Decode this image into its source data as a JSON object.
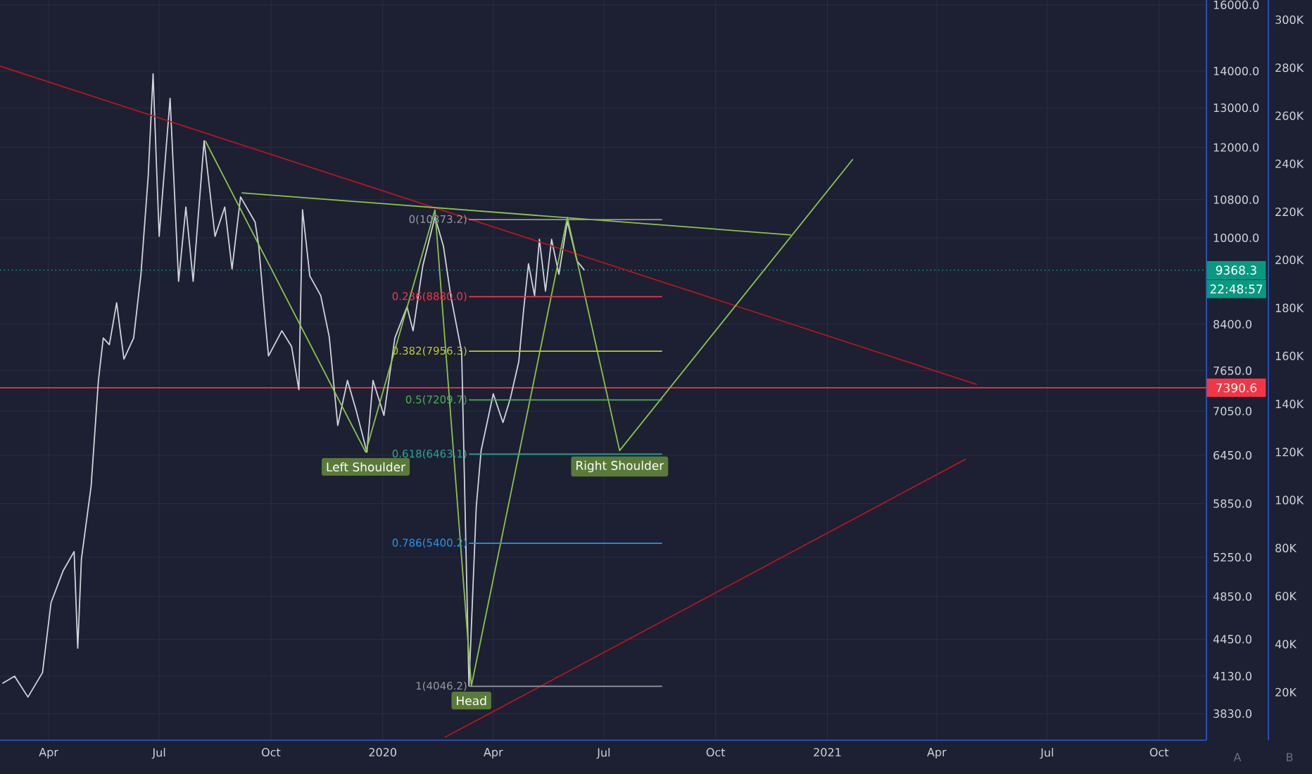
{
  "chart_data": {
    "type": "line",
    "log": "y",
    "grid": true,
    "marker": "none",
    "line_style": "solid",
    "xlim": [
      "2019-02-20",
      "2021-11-09"
    ],
    "ylim": [
      3630,
      16160
    ],
    "y2lim": [
      0,
      308200
    ],
    "xticks": [
      {
        "value": "2019-04-01",
        "label": "Apr"
      },
      {
        "value": "2019-07-01",
        "label": "Jul"
      },
      {
        "value": "2019-10-01",
        "label": "Oct"
      },
      {
        "value": "2020-01-01",
        "label": "2020"
      },
      {
        "value": "2020-04-01",
        "label": "Apr"
      },
      {
        "value": "2020-07-01",
        "label": "Jul"
      },
      {
        "value": "2020-10-01",
        "label": "Oct"
      },
      {
        "value": "2021-01-01",
        "label": "2021"
      },
      {
        "value": "2021-04-01",
        "label": "Apr"
      },
      {
        "value": "2021-07-01",
        "label": "Jul"
      },
      {
        "value": "2021-10-01",
        "label": "Oct"
      }
    ],
    "yticks": [
      {
        "value": 3830,
        "label": "3830.0"
      },
      {
        "value": 4130,
        "label": "4130.0"
      },
      {
        "value": 4450,
        "label": "4450.0"
      },
      {
        "value": 4850,
        "label": "4850.0"
      },
      {
        "value": 5250,
        "label": "5250.0"
      },
      {
        "value": 5850,
        "label": "5850.0"
      },
      {
        "value": 6450,
        "label": "6450.0"
      },
      {
        "value": 7050,
        "label": "7050.0"
      },
      {
        "value": 7650,
        "label": "7650.0"
      },
      {
        "value": 8400,
        "label": "8400.0"
      },
      {
        "value": 10000,
        "label": "10000.0"
      },
      {
        "value": 10800,
        "label": "10800.0"
      },
      {
        "value": 12000,
        "label": "12000.0"
      },
      {
        "value": 13000,
        "label": "13000.0"
      },
      {
        "value": 14000,
        "label": "14000.0"
      },
      {
        "value": 16000,
        "label": "16000.0"
      }
    ],
    "y2ticks": [
      {
        "value": 20000,
        "label": "20K"
      },
      {
        "value": 40000,
        "label": "40K"
      },
      {
        "value": 60000,
        "label": "60K"
      },
      {
        "value": 80000,
        "label": "80K"
      },
      {
        "value": 100000,
        "label": "100K"
      },
      {
        "value": 120000,
        "label": "120K"
      },
      {
        "value": 140000,
        "label": "140K"
      },
      {
        "value": 160000,
        "label": "160K"
      },
      {
        "value": 180000,
        "label": "180K"
      },
      {
        "value": 200000,
        "label": "200K"
      },
      {
        "value": 220000,
        "label": "220K"
      },
      {
        "value": 240000,
        "label": "240K"
      },
      {
        "value": 260000,
        "label": "260K"
      },
      {
        "value": 280000,
        "label": "280K"
      },
      {
        "value": 300000,
        "label": "300K"
      }
    ],
    "series": [
      {
        "color": "#d1d4dc",
        "x": [
          "2019-02-22",
          "2019-03-04",
          "2019-03-15",
          "2019-03-27",
          "2019-04-03",
          "2019-04-13",
          "2019-04-22",
          "2019-04-25",
          "2019-04-28",
          "2019-05-06",
          "2019-05-12",
          "2019-05-16",
          "2019-05-21",
          "2019-05-27",
          "2019-06-02",
          "2019-06-10",
          "2019-06-16",
          "2019-06-22",
          "2019-06-26",
          "2019-07-01",
          "2019-07-10",
          "2019-07-17",
          "2019-07-23",
          "2019-07-29",
          "2019-08-07",
          "2019-08-16",
          "2019-08-24",
          "2019-08-30",
          "2019-09-06",
          "2019-09-18",
          "2019-09-21",
          "2019-09-26",
          "2019-09-29",
          "2019-10-10",
          "2019-10-18",
          "2019-10-24",
          "2019-10-27",
          "2019-11-02",
          "2019-11-11",
          "2019-11-18",
          "2019-11-25",
          "2019-12-03",
          "2019-12-10",
          "2019-12-19",
          "2019-12-24",
          "2020-01-02",
          "2020-01-11",
          "2020-01-21",
          "2020-01-26",
          "2020-02-03",
          "2020-02-13",
          "2020-02-20",
          "2020-02-26",
          "2020-03-06",
          "2020-03-12",
          "2020-03-18",
          "2020-03-22",
          "2020-04-01",
          "2020-04-09",
          "2020-04-15",
          "2020-04-22",
          "2020-04-26",
          "2020-04-30",
          "2020-05-05",
          "2020-05-09",
          "2020-05-14",
          "2020-05-19",
          "2020-05-25",
          "2020-06-01",
          "2020-06-06",
          "2020-06-09",
          "2020-06-15"
        ],
        "values": [
          4070,
          4130,
          3960,
          4160,
          4790,
          5110,
          5310,
          4370,
          5230,
          6060,
          7500,
          8170,
          8060,
          8770,
          7830,
          8170,
          9290,
          11330,
          13920,
          10030,
          13250,
          9160,
          10640,
          9160,
          12160,
          10030,
          10640,
          9390,
          10860,
          10320,
          9830,
          8530,
          7880,
          8290,
          8030,
          7360,
          10580,
          9260,
          8900,
          8190,
          6850,
          7500,
          7070,
          6490,
          7500,
          6990,
          8170,
          8700,
          8290,
          9450,
          10430,
          9830,
          8900,
          7940,
          4050,
          5810,
          6510,
          7300,
          6890,
          7230,
          7790,
          8650,
          9490,
          8900,
          9970,
          8980,
          9970,
          9290,
          10340,
          9830,
          9540,
          9370
        ]
      },
      {
        "color": "#b2161e",
        "x": [
          "2019-02-20",
          "2021-05-04"
        ],
        "values": [
          14140,
          7440
        ]
      },
      {
        "color": "#b2161e",
        "x": [
          "2020-02-21",
          "2021-04-25"
        ],
        "values": [
          3650,
          6400
        ]
      },
      {
        "color": "#8bc34a",
        "x": [
          "2019-08-08",
          "2019-12-18",
          "2020-02-13",
          "2020-03-14",
          "2020-06-01",
          "2020-07-14",
          "2021-01-22"
        ],
        "values": [
          12160,
          6490,
          10580,
          4050,
          10420,
          6510,
          11720
        ]
      },
      {
        "color": "#8bc34a",
        "x": [
          "2019-09-07",
          "2020-12-02"
        ],
        "values": [
          10950,
          10060
        ]
      },
      {
        "name": "0(10373.2)",
        "color": "#9598a1",
        "x": [
          "2020-03-12",
          "2020-08-18"
        ],
        "values": [
          10373.2,
          10373.2
        ]
      },
      {
        "name": "0.236(8880.0)",
        "color": "#f23645",
        "x": [
          "2020-03-12",
          "2020-08-18"
        ],
        "values": [
          8880.0,
          8880.0
        ]
      },
      {
        "name": "0.382(7956.3)",
        "color": "#c0ca33",
        "x": [
          "2020-03-12",
          "2020-08-18"
        ],
        "values": [
          7956.3,
          7956.3
        ]
      },
      {
        "name": "0.5(7209.7)",
        "color": "#4caf50",
        "x": [
          "2020-03-12",
          "2020-08-18"
        ],
        "values": [
          7209.7,
          7209.7
        ]
      },
      {
        "name": "0.618(6463.1)",
        "color": "#26a69a",
        "x": [
          "2020-03-12",
          "2020-08-18"
        ],
        "values": [
          6463.1,
          6463.1
        ]
      },
      {
        "name": "0.786(5400.2)",
        "color": "#2196f3",
        "x": [
          "2020-03-12",
          "2020-08-18"
        ],
        "values": [
          5400.2,
          5400.2
        ]
      },
      {
        "name": "1(4046.2)",
        "color": "#9598a1",
        "x": [
          "2020-03-12",
          "2020-08-18"
        ],
        "values": [
          4046.2,
          4046.2
        ]
      }
    ],
    "ref_lines": [
      {
        "axis": "y",
        "value": 9368.3,
        "label": "9368.3",
        "color": "#089981",
        "line_style": "dotted"
      },
      {
        "axis": "y",
        "value": 7390.6,
        "label": "7390.6",
        "color": "#f23645",
        "line_style": "solid"
      }
    ],
    "annotations": [
      {
        "text": "Left Shoulder",
        "x": "2019-12-18",
        "y": 6490
      },
      {
        "text": "Head",
        "x": "2020-03-14",
        "y": 4050
      },
      {
        "text": "Right Shoulder",
        "x": "2020-07-14",
        "y": 6510
      },
      "22:48:57",
      "A",
      "B"
    ]
  }
}
